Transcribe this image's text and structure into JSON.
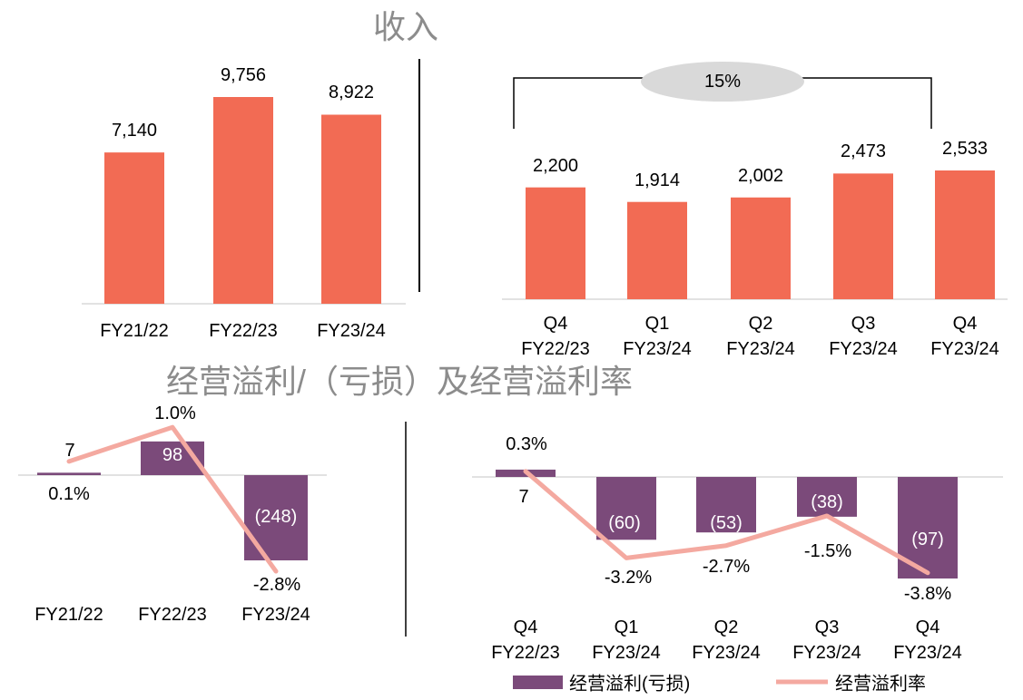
{
  "headings": [
    "收入",
    "经营溢利/（亏损）及经营溢利率"
  ],
  "chart_data": [
    {
      "type": "bar",
      "categories": [
        "FY21/22",
        "FY22/23",
        "FY23/24"
      ],
      "values": [
        7140,
        9756,
        8922
      ],
      "value_labels": [
        "7,140",
        "9,756",
        "8,922"
      ],
      "color": "#f26b54"
    },
    {
      "type": "bar",
      "categories": [
        "Q4\nFY22/23",
        "Q1\nFY23/24",
        "Q2\nFY23/24",
        "Q3\nFY23/24",
        "Q4\nFY23/24"
      ],
      "values": [
        2200,
        1914,
        2002,
        2473,
        2533
      ],
      "value_labels": [
        "2,200",
        "1,914",
        "2,002",
        "2,473",
        "2,533"
      ],
      "color": "#f26b54",
      "annotation": "15%"
    },
    {
      "type": "bar_line",
      "categories": [
        "FY21/22",
        "FY22/23",
        "FY23/24"
      ],
      "series": [
        {
          "color": "#7b4a7a",
          "values": [
            7,
            98,
            -248
          ],
          "value_labels": [
            "7",
            "98",
            "(248)"
          ]
        },
        {
          "color": "#f4a9a0",
          "axis": "y2",
          "values": [
            0.1,
            1.0,
            -2.8
          ],
          "value_labels": [
            "0.1%",
            "1.0%",
            "-2.8%"
          ]
        }
      ]
    },
    {
      "type": "bar_line",
      "categories": [
        "Q4\nFY22/23",
        "Q1\nFY23/24",
        "Q2\nFY23/24",
        "Q3\nFY23/24",
        "Q4\nFY23/24"
      ],
      "series": [
        {
          "name": "经营溢利(亏损)",
          "color": "#7b4a7a",
          "values": [
            7,
            -60,
            -53,
            -38,
            -97
          ],
          "value_labels": [
            "7",
            "(60)",
            "(53)",
            "(38)",
            "(97)"
          ]
        },
        {
          "name": "经营溢利率",
          "color": "#f4a9a0",
          "axis": "y2",
          "values": [
            0.3,
            -3.2,
            -2.7,
            -1.5,
            -3.8
          ],
          "value_labels": [
            "0.3%",
            "-3.2%",
            "-2.7%",
            "-1.5%",
            "-3.8%"
          ]
        }
      ]
    }
  ]
}
